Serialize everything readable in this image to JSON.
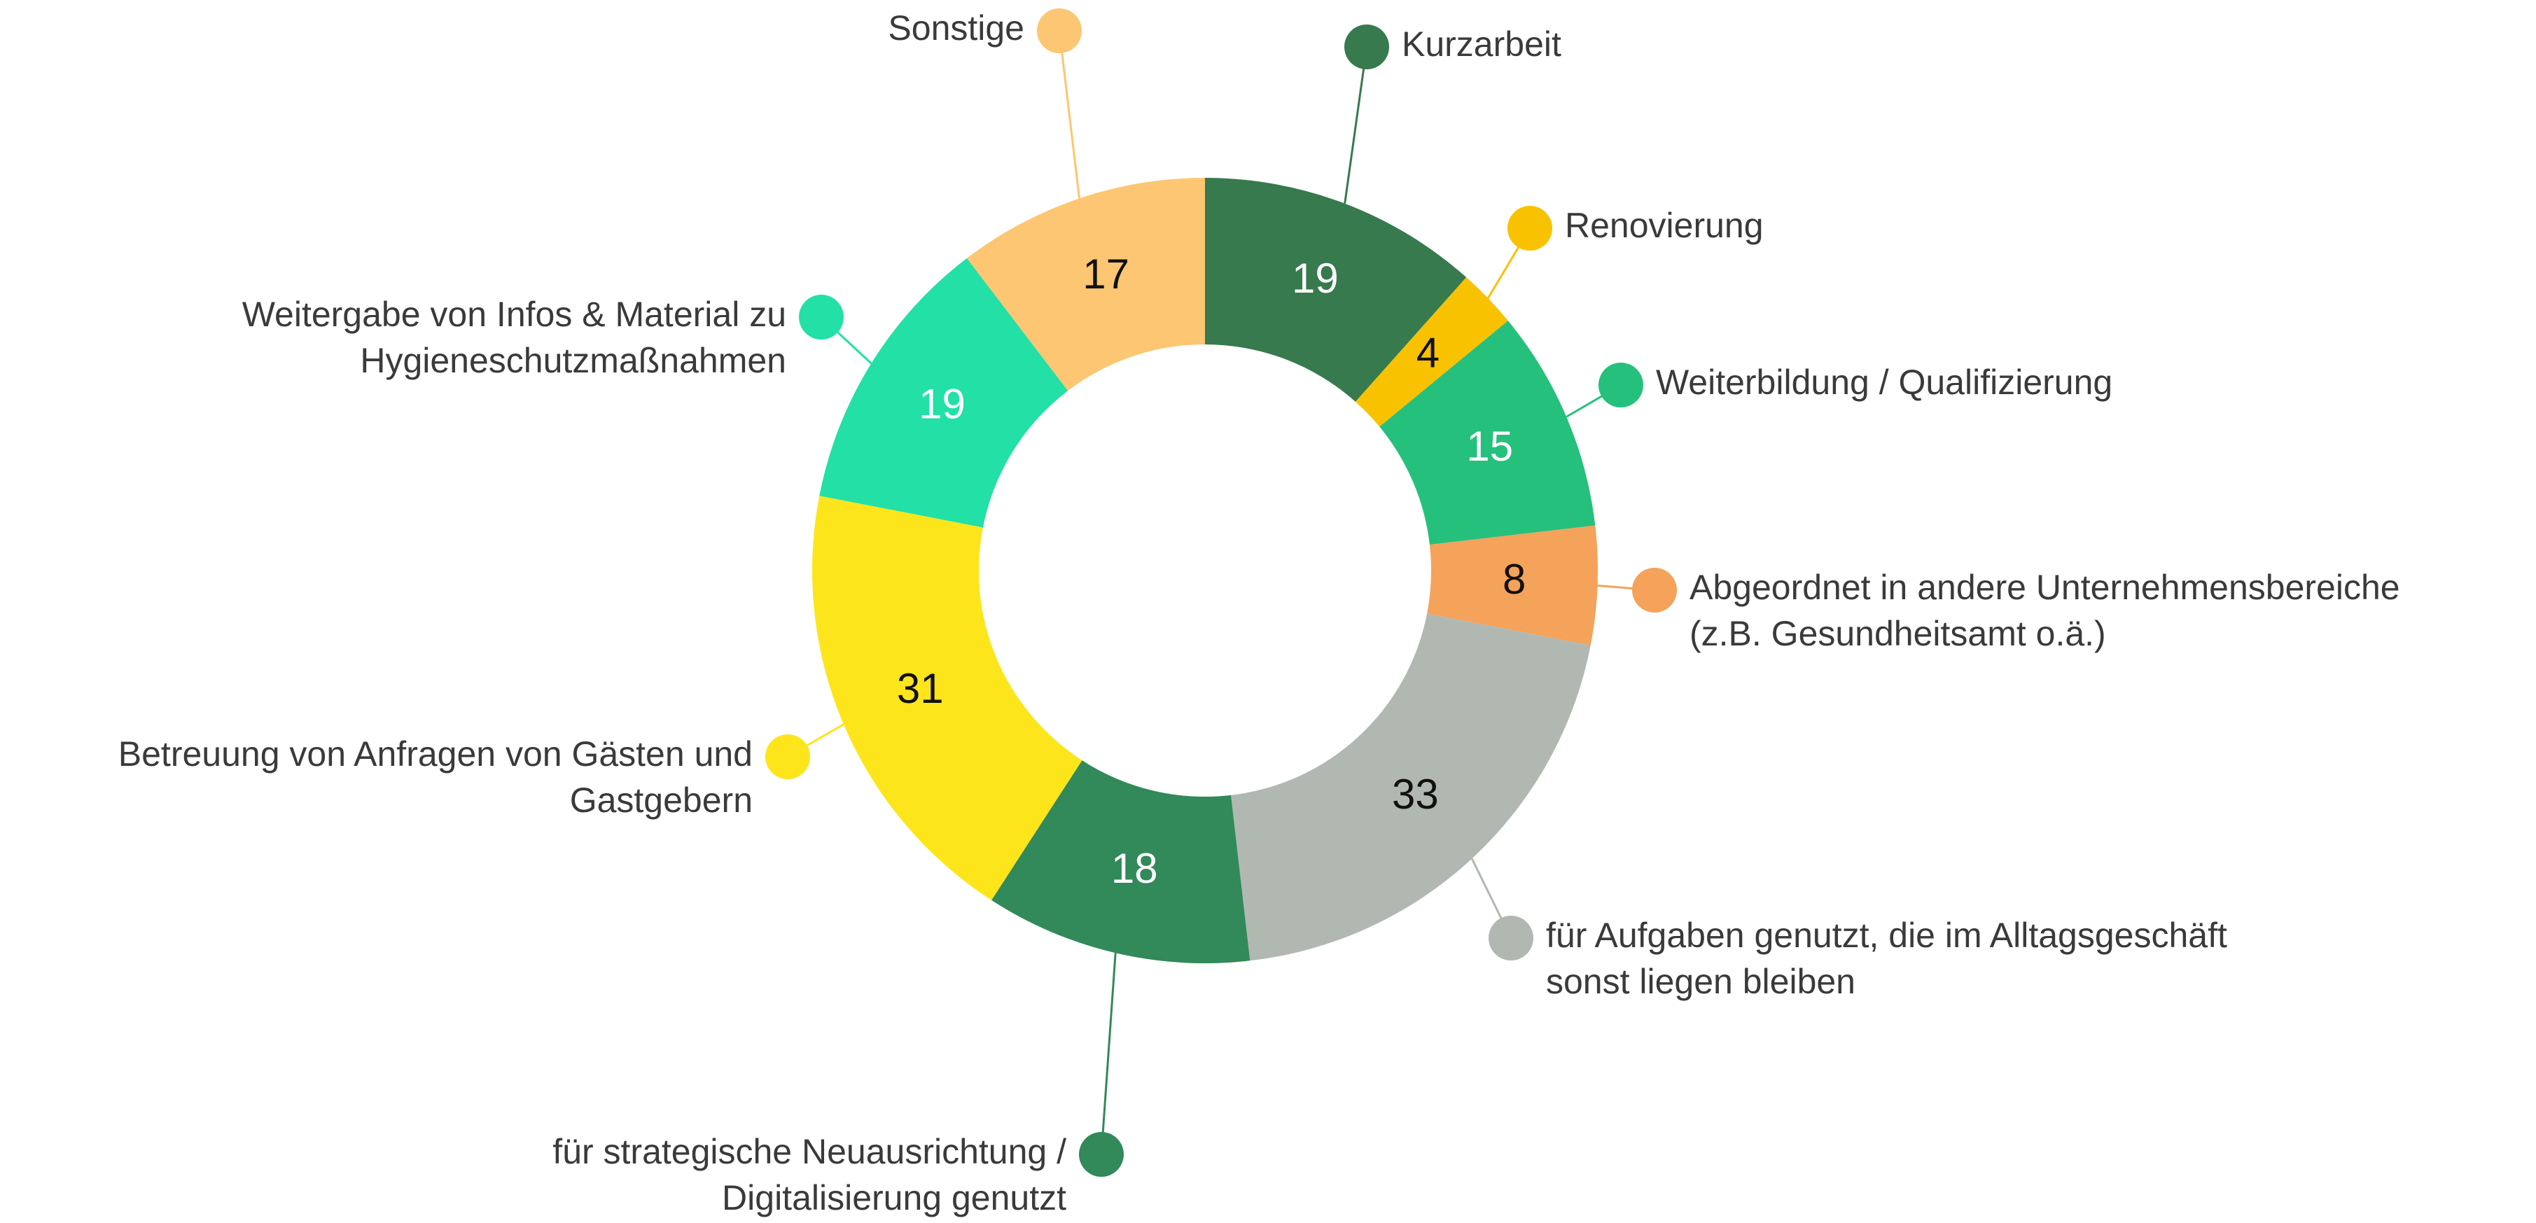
{
  "chart_data": {
    "type": "donut",
    "categories": [
      [
        "Kurzarbeit"
      ],
      [
        "Renovierung"
      ],
      [
        "Weiterbildung / Qualifizierung"
      ],
      [
        "Abgeordnet in andere Unternehmensbereiche",
        "(z.B. Gesundheitsamt o.ä.)"
      ],
      [
        "für Aufgaben genutzt, die im Alltagsgeschäft",
        "sonst liegen bleiben"
      ],
      [
        "für strategische Neuausrichtung /",
        "Digitalisierung genutzt"
      ],
      [
        "Betreuung von Anfragen von Gästen und",
        "Gastgebern"
      ],
      [
        "Weitergabe von Infos & Material zu",
        "Hygieneschutzmaßnahmen"
      ],
      [
        "Sonstige"
      ]
    ],
    "values": [
      19,
      4,
      15,
      8,
      33,
      18,
      31,
      19,
      17
    ],
    "colors": [
      "#367a4e",
      "#f9c200",
      "#26c07d",
      "#f5a25a",
      "#b1b8b2",
      "#32895a",
      "#fde51c",
      "#22e0a6",
      "#fdc672"
    ]
  }
}
